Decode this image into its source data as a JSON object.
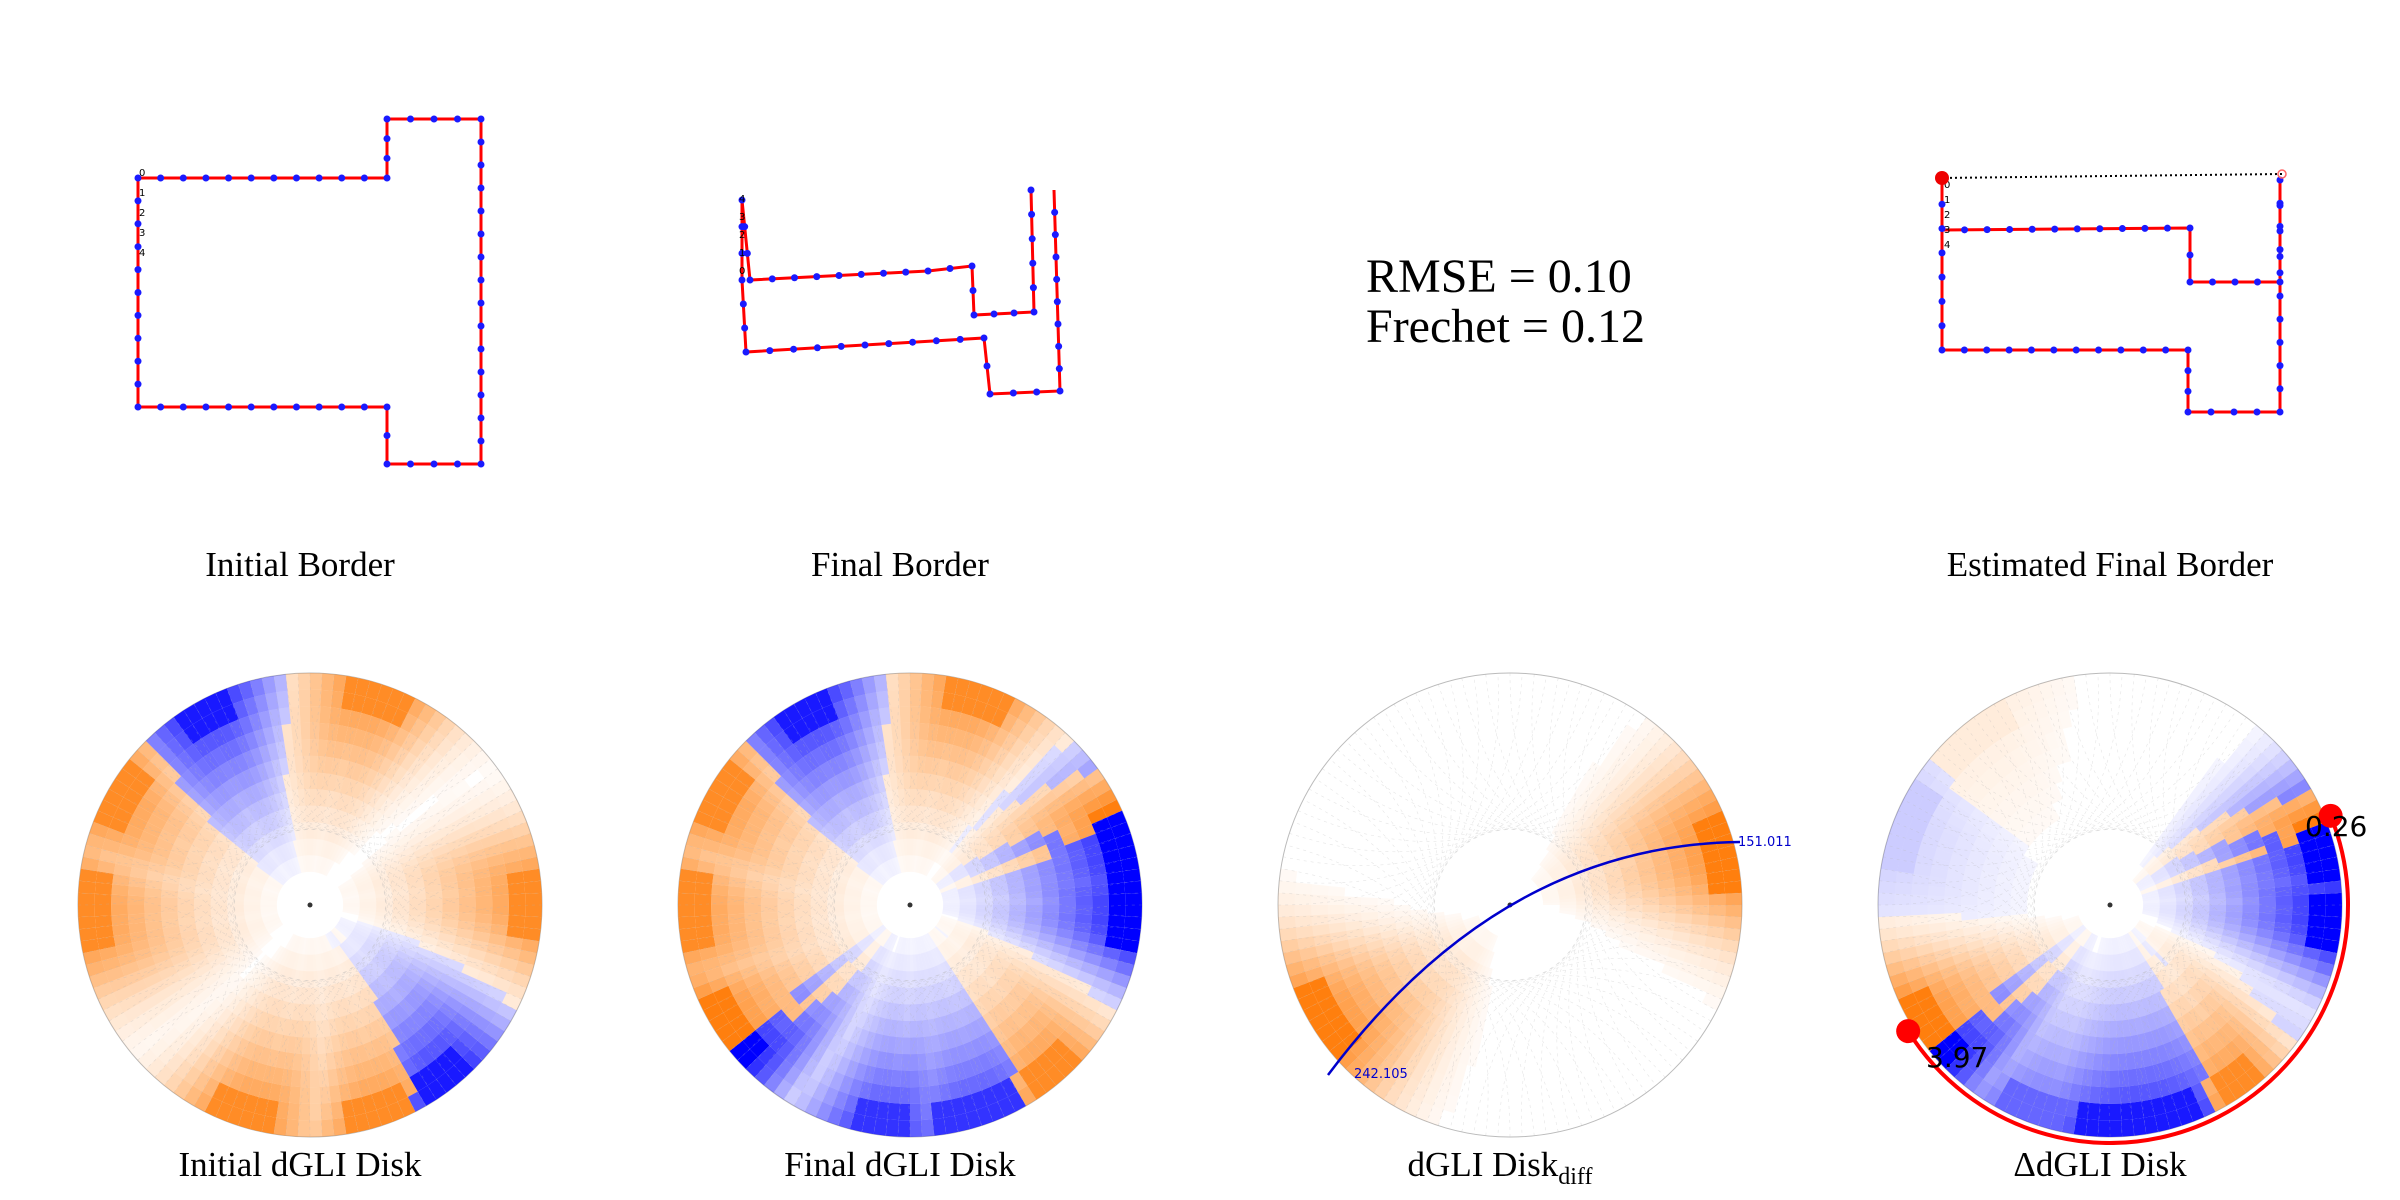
{
  "titles": {
    "initial_border": "Initial Border",
    "final_border": "Final Border",
    "estimated_final_border": "Estimated Final Border",
    "initial_disk": "Initial dGLI Disk",
    "final_disk": "Final dGLI Disk",
    "diff_disk_main": "dGLI Disk",
    "diff_disk_sub": "diff",
    "delta_disk": "ΔdGLI Disk"
  },
  "metrics": {
    "rmse": "RMSE = 0.10",
    "frechet": "Frechet = 0.12"
  },
  "annotations": {
    "diff_arc_end": "151.011",
    "diff_arc_start": "242.105",
    "delta_value_right": "0.26",
    "delta_value_left": "3.97"
  },
  "vertex_labels": {
    "initial": [
      "0",
      "1",
      "2",
      "3",
      "4"
    ],
    "final": [
      "4",
      "3",
      "2",
      "1",
      "0"
    ],
    "estimated": [
      "0",
      "1",
      "2",
      "3",
      "4"
    ]
  },
  "colors": {
    "border_line": "#ff0000",
    "border_vertex": "#1a1aff",
    "warm": "#ff7f0e",
    "cool": "#0000ff",
    "arc_blue": "#0000cc",
    "arc_red": "#ff0000",
    "circle": "#bbbbbb"
  }
}
